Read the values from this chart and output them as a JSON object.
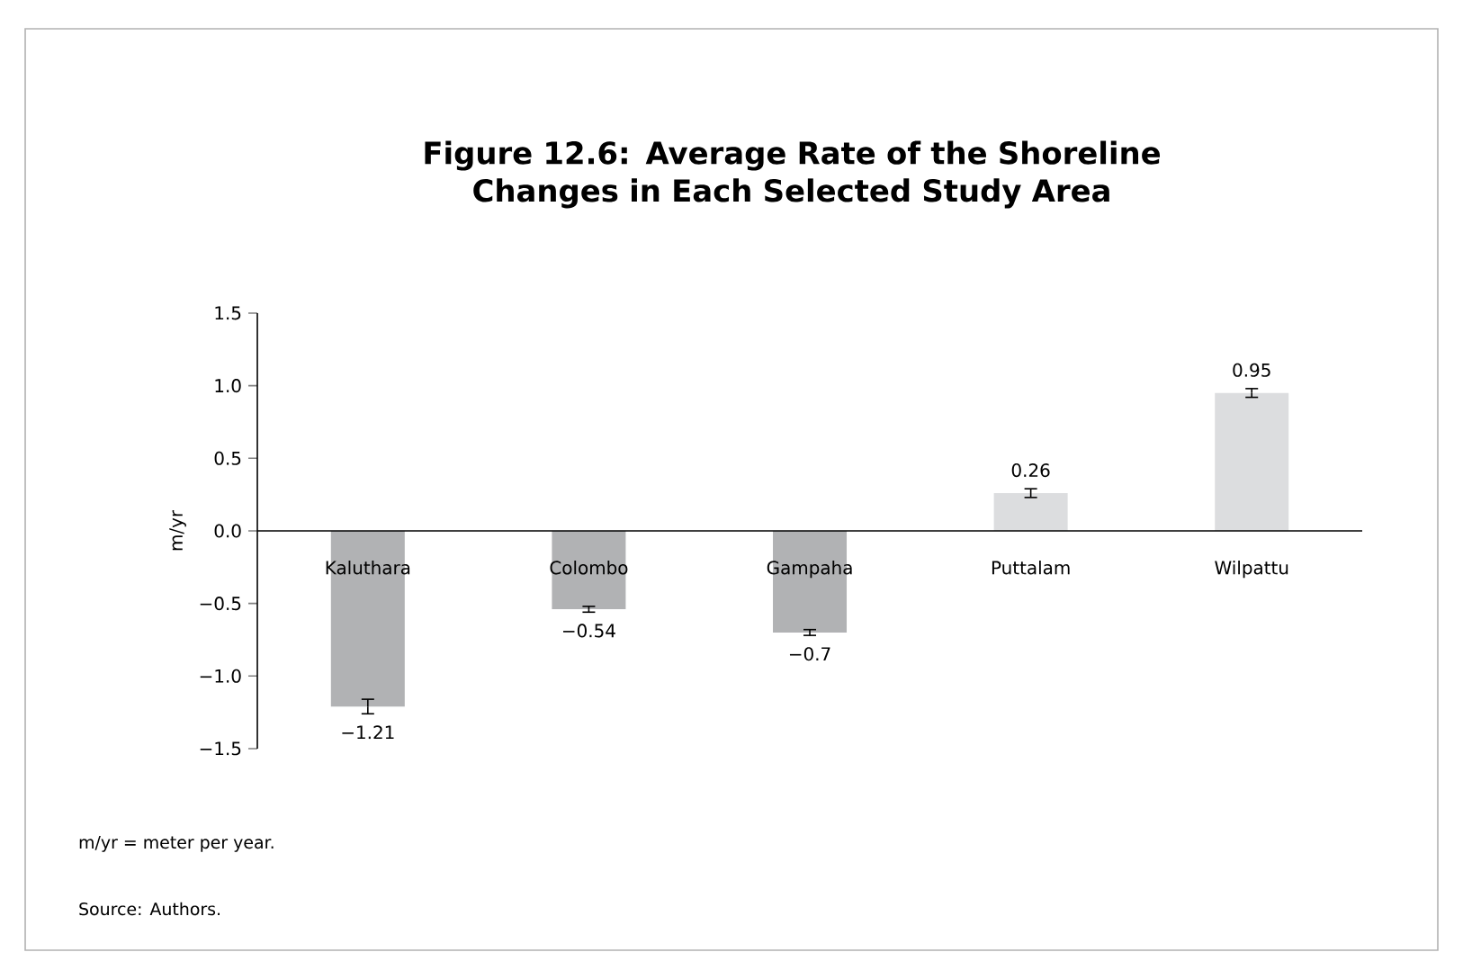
{
  "chart_data": {
    "type": "bar",
    "title": "Figure 12.6: Average Rate of the Shoreline Changes in Each Selected Study Area",
    "ylabel": "m/yr",
    "categories": [
      "Kaluthara",
      "Colombo",
      "Gampaha",
      "Puttalam",
      "Wilpattu"
    ],
    "values": [
      -1.21,
      -0.54,
      -0.7,
      0.26,
      0.95
    ],
    "colors": [
      "#b1b2b4",
      "#b1b2b4",
      "#b1b2b4",
      "#dcdddf",
      "#dcdddf"
    ],
    "errors": [
      0.05,
      0.02,
      0.02,
      0.03,
      0.03
    ],
    "value_labels": [
      "−1.21",
      "−0.54",
      "−0.7",
      "0.26",
      "0.95"
    ],
    "ylim": [
      -1.5,
      1.5
    ],
    "yticks": [
      {
        "value": -1.5,
        "label": "−1.5"
      },
      {
        "value": -1.0,
        "label": "−1.0"
      },
      {
        "value": -0.5,
        "label": "−0.5"
      },
      {
        "value": 0,
        "label": "0.0"
      },
      {
        "value": 0.5,
        "label": "0.5"
      },
      {
        "value": 1.0,
        "label": "1.0"
      },
      {
        "value": 1.5,
        "label": "1.5"
      }
    ],
    "grid": false,
    "annotations": [
      "m/yr = meter per year.",
      "Source: Authors."
    ]
  }
}
